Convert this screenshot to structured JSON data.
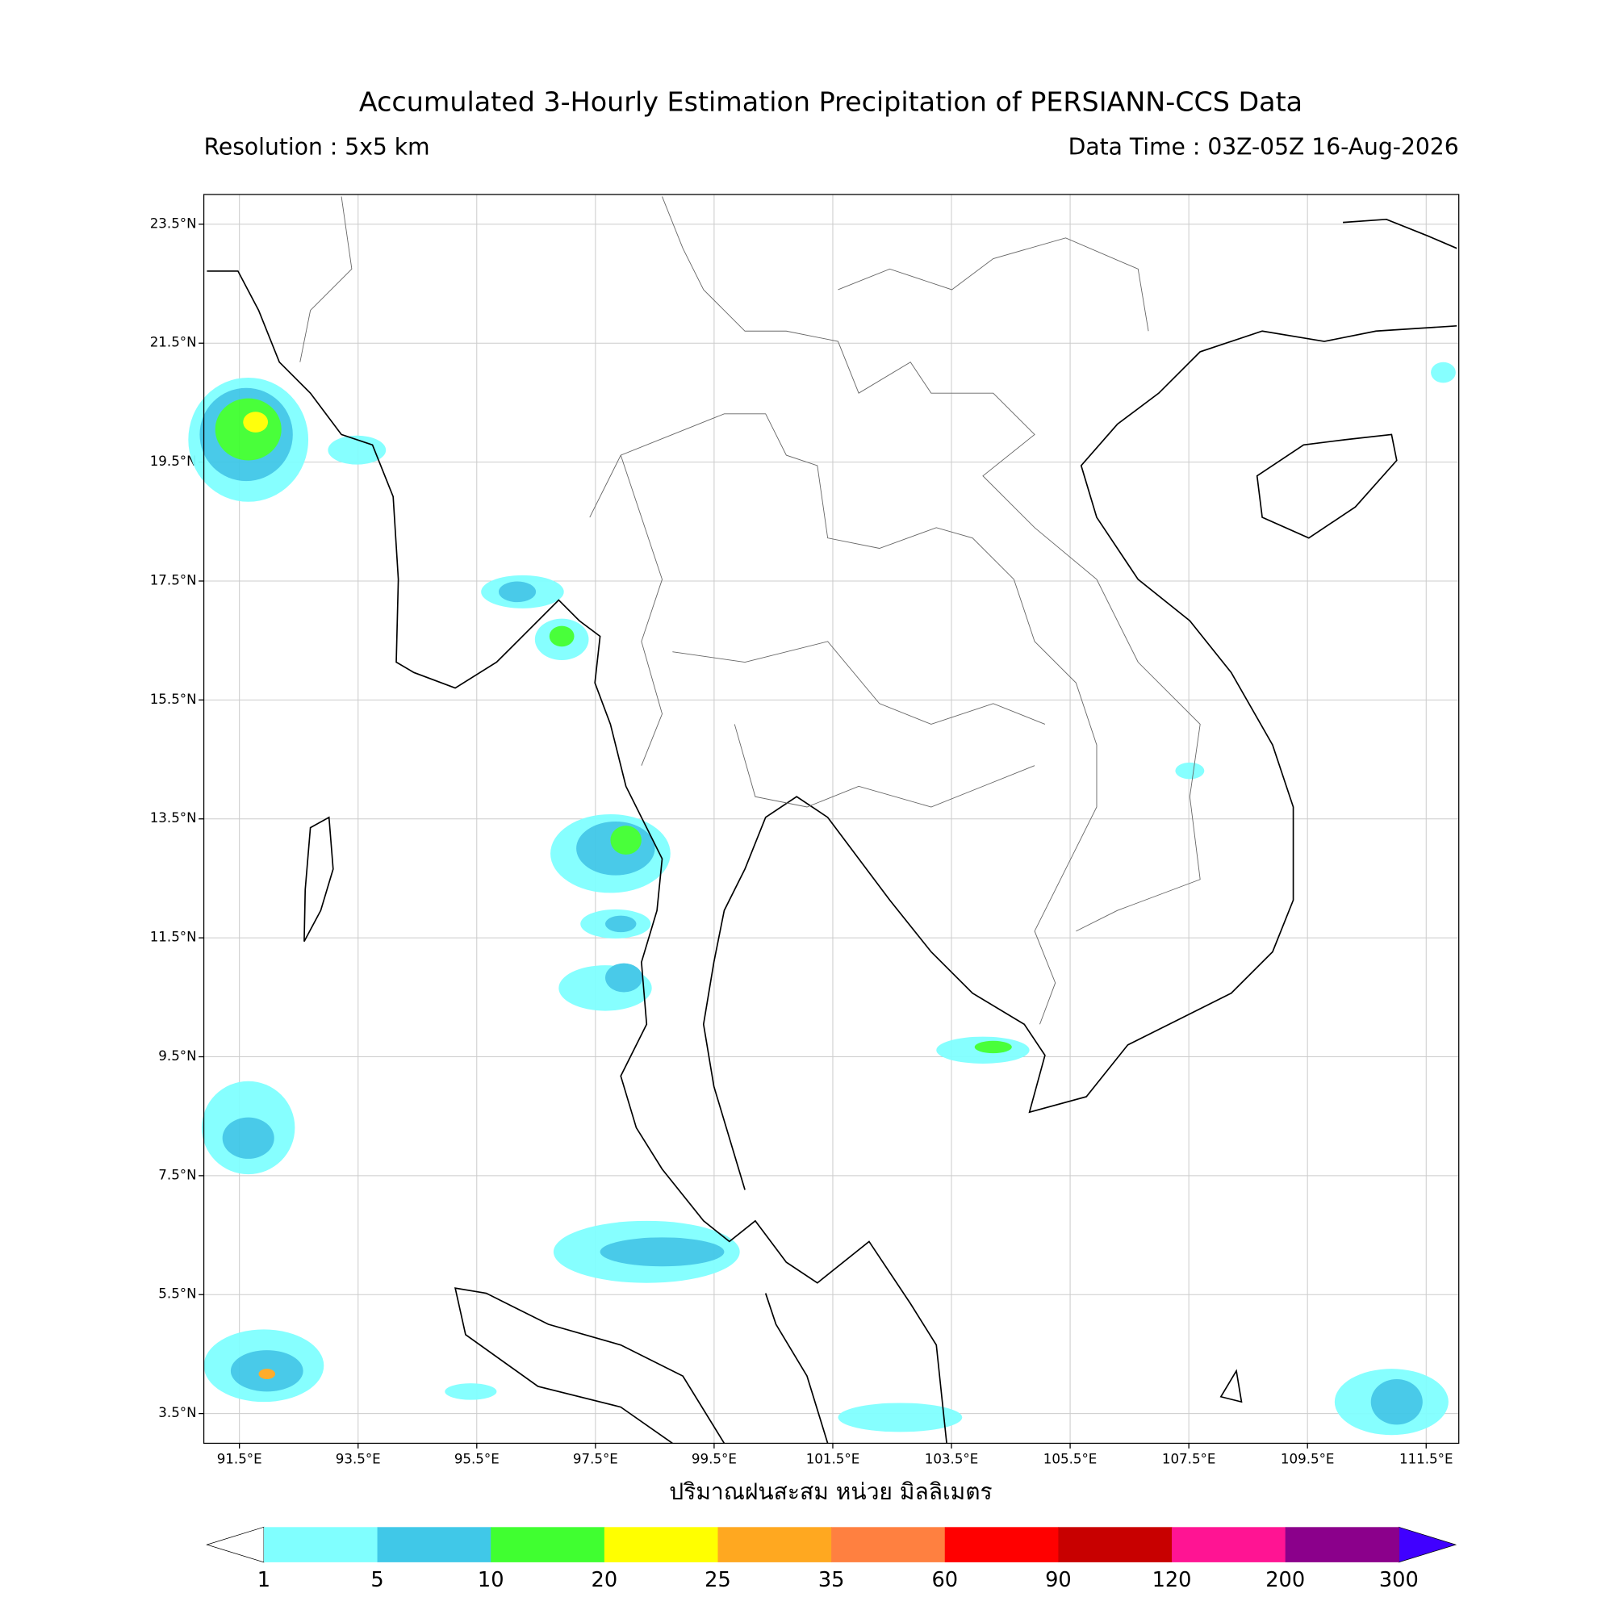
{
  "chart_data": {
    "type": "map",
    "title": "Accumulated 3-Hourly Estimation Precipitation of PERSIANN-CCS Data",
    "subtitle_left": "Resolution : 5x5 km",
    "subtitle_right": "Data Time : 03Z-05Z 16-Aug-2026",
    "xlabel": "ปริมาณฝนสะสม หน่วย มิลลิเมตร",
    "xlim": [
      90.9,
      112.05
    ],
    "ylim": [
      3.0,
      24.0
    ],
    "grid": true,
    "xticks": [
      {
        "value": 91.5,
        "label": "91.5°E"
      },
      {
        "value": 93.5,
        "label": "93.5°E"
      },
      {
        "value": 95.5,
        "label": "95.5°E"
      },
      {
        "value": 97.5,
        "label": "97.5°E"
      },
      {
        "value": 99.5,
        "label": "99.5°E"
      },
      {
        "value": 101.5,
        "label": "101.5°E"
      },
      {
        "value": 103.5,
        "label": "103.5°E"
      },
      {
        "value": 105.5,
        "label": "105.5°E"
      },
      {
        "value": 107.5,
        "label": "107.5°E"
      },
      {
        "value": 109.5,
        "label": "109.5°E"
      },
      {
        "value": 111.5,
        "label": "111.5°E"
      }
    ],
    "yticks": [
      {
        "value": 3.5,
        "label": "3.5°N"
      },
      {
        "value": 5.5,
        "label": "5.5°N"
      },
      {
        "value": 7.5,
        "label": "7.5°N"
      },
      {
        "value": 9.5,
        "label": "9.5°N"
      },
      {
        "value": 11.5,
        "label": "11.5°N"
      },
      {
        "value": 13.5,
        "label": "13.5°N"
      },
      {
        "value": 15.5,
        "label": "15.5°N"
      },
      {
        "value": 17.5,
        "label": "17.5°N"
      },
      {
        "value": 19.5,
        "label": "19.5°N"
      },
      {
        "value": 21.5,
        "label": "21.5°N"
      },
      {
        "value": 23.5,
        "label": "23.5°N"
      }
    ],
    "colorbar": {
      "levels": [
        1,
        5,
        10,
        20,
        25,
        35,
        60,
        90,
        120,
        200,
        300
      ],
      "colors": [
        "#80ffff",
        "#40c8e8",
        "#40ff30",
        "#ffff00",
        "#ffa820",
        "#ff8040",
        "#ff0000",
        "#c80000",
        "#ff1493",
        "#8b008b"
      ],
      "under_color": "#ffffff",
      "over_color": "#4000ff"
    }
  }
}
